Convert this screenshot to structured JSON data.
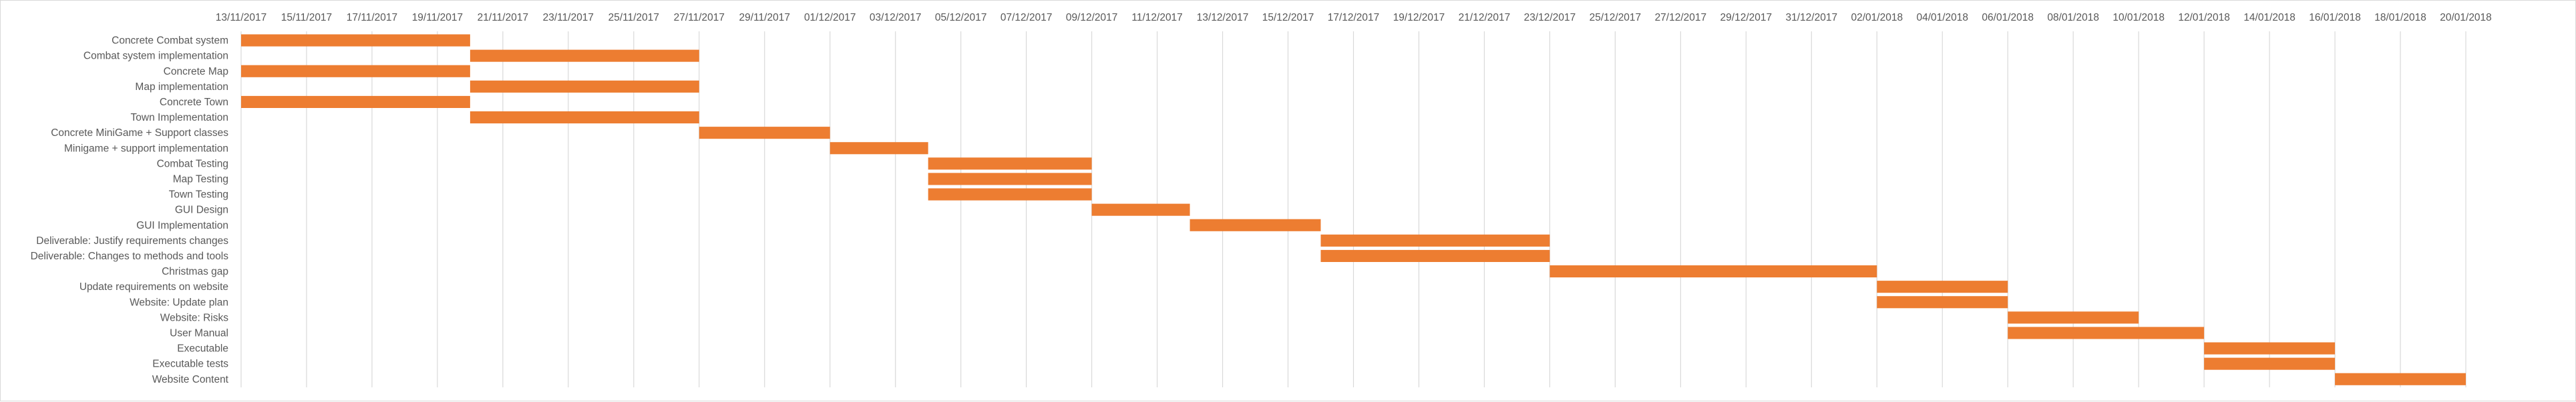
{
  "chart_data": {
    "type": "bar",
    "orientation": "horizontal",
    "subtype": "gantt",
    "x_axis": {
      "type": "date",
      "range": [
        "2017-11-13",
        "2018-01-21"
      ],
      "tick_step_days": 2,
      "tick_labels": [
        "13/11/2017",
        "15/11/2017",
        "17/11/2017",
        "19/11/2017",
        "21/11/2017",
        "23/11/2017",
        "25/11/2017",
        "27/11/2017",
        "29/11/2017",
        "01/12/2017",
        "03/12/2017",
        "05/12/2017",
        "07/12/2017",
        "09/12/2017",
        "11/12/2017",
        "13/12/2017",
        "15/12/2017",
        "17/12/2017",
        "19/12/2017",
        "21/12/2017",
        "23/12/2017",
        "25/12/2017",
        "27/12/2017",
        "29/12/2017",
        "31/12/2017",
        "02/01/2018",
        "04/01/2018",
        "06/01/2018",
        "08/01/2018",
        "10/01/2018",
        "12/01/2018",
        "14/01/2018",
        "16/01/2018",
        "18/01/2018",
        "20/01/2018"
      ],
      "position": "top",
      "vertical_gridlines": true
    },
    "bar_color": "#ed7d31",
    "tasks": [
      {
        "name": "Concrete Combat system",
        "start": "2017-11-13",
        "end": "2017-11-20"
      },
      {
        "name": "Combat system implementation",
        "start": "2017-11-20",
        "end": "2017-11-27"
      },
      {
        "name": "Concrete Map",
        "start": "2017-11-13",
        "end": "2017-11-20"
      },
      {
        "name": "Map implementation",
        "start": "2017-11-20",
        "end": "2017-11-27"
      },
      {
        "name": "Concrete Town",
        "start": "2017-11-13",
        "end": "2017-11-20"
      },
      {
        "name": "Town Implementation",
        "start": "2017-11-20",
        "end": "2017-11-27"
      },
      {
        "name": "Concrete MiniGame + Support classes",
        "start": "2017-11-27",
        "end": "2017-12-01"
      },
      {
        "name": "Minigame + support implementation",
        "start": "2017-12-01",
        "end": "2017-12-04"
      },
      {
        "name": "Combat Testing",
        "start": "2017-12-04",
        "end": "2017-12-09"
      },
      {
        "name": "Map Testing",
        "start": "2017-12-04",
        "end": "2017-12-09"
      },
      {
        "name": "Town Testing",
        "start": "2017-12-04",
        "end": "2017-12-09"
      },
      {
        "name": "GUI Design",
        "start": "2017-12-09",
        "end": "2017-12-12"
      },
      {
        "name": "GUI Implementation",
        "start": "2017-12-12",
        "end": "2017-12-16"
      },
      {
        "name": "Deliverable: Justify requirements changes",
        "start": "2017-12-16",
        "end": "2017-12-23"
      },
      {
        "name": "Deliverable: Changes to methods and tools",
        "start": "2017-12-16",
        "end": "2017-12-23"
      },
      {
        "name": "Christmas gap",
        "start": "2017-12-23",
        "end": "2018-01-02"
      },
      {
        "name": "Update requirements on website",
        "start": "2018-01-02",
        "end": "2018-01-06"
      },
      {
        "name": "Website: Update plan",
        "start": "2018-01-02",
        "end": "2018-01-06"
      },
      {
        "name": "Website: Risks",
        "start": "2018-01-06",
        "end": "2018-01-10"
      },
      {
        "name": "User Manual",
        "start": "2018-01-06",
        "end": "2018-01-12"
      },
      {
        "name": "Executable",
        "start": "2018-01-12",
        "end": "2018-01-16"
      },
      {
        "name": "Executable tests",
        "start": "2018-01-12",
        "end": "2018-01-16"
      },
      {
        "name": "Website Content",
        "start": "2018-01-16",
        "end": "2018-01-20"
      }
    ]
  }
}
